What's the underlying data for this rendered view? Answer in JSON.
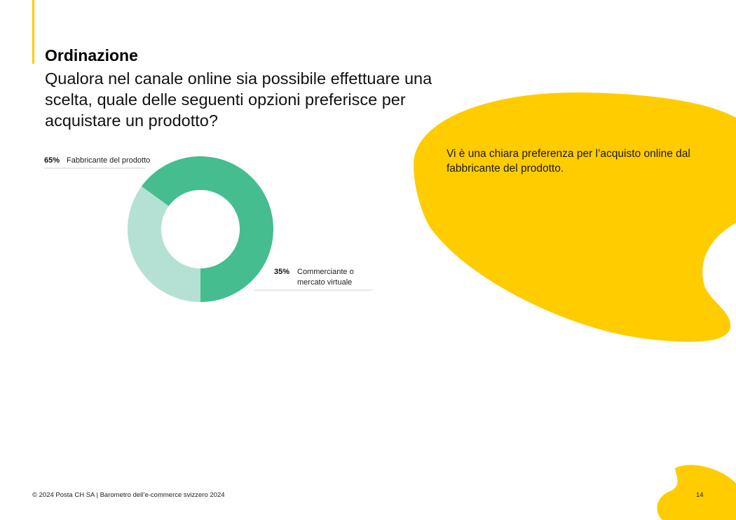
{
  "header": {
    "title": "Ordinazione",
    "question": "Qualora nel canale online sia possibile effettuare una scelta, quale delle seguenti opzioni preferisce per acquistare un prodotto?"
  },
  "callout": {
    "text": "Vi è una chiara preferenza per l’acquisto online dal fabbricante del prodotto."
  },
  "chart_data": {
    "type": "pie",
    "variant": "donut",
    "categories": [
      "Fabbricante del prodotto",
      "Commerciante o mercato virtuale"
    ],
    "values": [
      65,
      35
    ],
    "value_labels": [
      "65%",
      "35%"
    ],
    "colors": [
      "#45bd8f",
      "#b5e1d4"
    ]
  },
  "labels": {
    "slice1_line1": "Fabbricante del prodotto",
    "slice2_line1": "Commerciante o",
    "slice2_line2": "mercato virtuale"
  },
  "colors": {
    "accent": "#ffcc00",
    "primary_slice": "#45bd8f",
    "secondary_slice": "#b5e1d4"
  },
  "footer": {
    "copyright": "© 2024 Posta CH SA | Barometro dell’e-commerce svizzero 2024",
    "page_number": "14"
  }
}
